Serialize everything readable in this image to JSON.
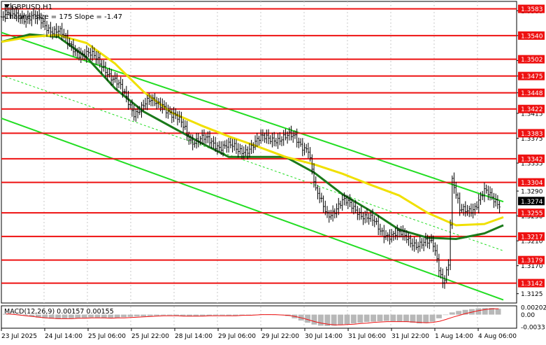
{
  "header": {
    "symbol_label": "GBPUSD,H1",
    "indicator_label": "Channel size = 175 Slope = -1.47"
  },
  "macd": {
    "label": "MACD(12,26,9) 0.00157 0.00155",
    "ticks": [
      "0.00202",
      "0.00",
      "-0.0033"
    ]
  },
  "chart_data": {
    "type": "candlestick",
    "symbol": "GBPUSD",
    "timeframe": "H1",
    "price_axis_ticks": [
      "1.3580",
      "1.3540",
      "1.3500",
      "1.3475",
      "1.3448",
      "1.3415",
      "1.3375",
      "1.3335",
      "1.3290",
      "1.3250",
      "1.3210",
      "1.3170",
      "1.3125"
    ],
    "ylim": [
      1.311,
      1.3595
    ],
    "x_tick_labels": [
      "23 Jul 2025",
      "24 Jul 14:00",
      "25 Jul 06:00",
      "25 Jul 22:00",
      "28 Jul 14:00",
      "29 Jul 06:00",
      "29 Jul 22:00",
      "30 Jul 14:00",
      "31 Jul 06:00",
      "31 Jul 22:00",
      "1 Aug 14:00",
      "4 Aug 06:00"
    ],
    "current_price": "1.3274",
    "horizontal_levels": [
      {
        "label": "1.3583",
        "value": 1.3583
      },
      {
        "label": "1.3540",
        "value": 1.354
      },
      {
        "label": "1.3502",
        "value": 1.3502
      },
      {
        "label": "1.3475",
        "value": 1.3475
      },
      {
        "label": "1.3448",
        "value": 1.3448
      },
      {
        "label": "1.3422",
        "value": 1.3422
      },
      {
        "label": "1.3383",
        "value": 1.3383
      },
      {
        "label": "1.3342",
        "value": 1.3342
      },
      {
        "label": "1.3304",
        "value": 1.3304
      },
      {
        "label": "1.3255",
        "value": 1.3255
      },
      {
        "label": "1.3217",
        "value": 1.3217
      },
      {
        "label": "1.3179",
        "value": 1.3179
      },
      {
        "label": "1.3142",
        "value": 1.3142
      }
    ],
    "price_path": [
      [
        0,
        1.357
      ],
      [
        10,
        1.3575
      ],
      [
        20,
        1.3562
      ],
      [
        30,
        1.3548
      ],
      [
        35,
        1.3525
      ],
      [
        45,
        1.351
      ],
      [
        55,
        1.349
      ],
      [
        63,
        1.3452
      ],
      [
        70,
        1.342
      ],
      [
        78,
        1.343
      ],
      [
        85,
        1.3435
      ],
      [
        90,
        1.341
      ],
      [
        97,
        1.3392
      ],
      [
        100,
        1.3375
      ],
      [
        110,
        1.3368
      ],
      [
        118,
        1.3365
      ],
      [
        125,
        1.3352
      ],
      [
        132,
        1.3365
      ],
      [
        138,
        1.3372
      ],
      [
        144,
        1.3378
      ],
      [
        150,
        1.3374
      ],
      [
        155,
        1.3375
      ],
      [
        162,
        1.336
      ],
      [
        166,
        1.3285
      ],
      [
        172,
        1.3255
      ],
      [
        180,
        1.327
      ],
      [
        188,
        1.3262
      ],
      [
        195,
        1.3242
      ],
      [
        200,
        1.3225
      ],
      [
        208,
        1.3222
      ],
      [
        215,
        1.321
      ],
      [
        222,
        1.3208
      ],
      [
        228,
        1.32
      ],
      [
        233,
        1.3148
      ],
      [
        236,
        1.3175
      ],
      [
        238,
        1.3305
      ],
      [
        242,
        1.3255
      ],
      [
        246,
        1.3262
      ],
      [
        250,
        1.3268
      ],
      [
        255,
        1.3285
      ],
      [
        259,
        1.3278
      ],
      [
        263,
        1.3274
      ]
    ],
    "series": [
      {
        "name": "",
        "color": "#1a7a1a",
        "values": [
          [
            0,
            1.353
          ],
          [
            15,
            1.3542
          ],
          [
            30,
            1.3538
          ],
          [
            45,
            1.3505
          ],
          [
            60,
            1.3455
          ],
          [
            75,
            1.3418
          ],
          [
            90,
            1.3393
          ],
          [
            105,
            1.3368
          ],
          [
            120,
            1.3345
          ],
          [
            135,
            1.3345
          ],
          [
            150,
            1.3345
          ],
          [
            165,
            1.332
          ],
          [
            180,
            1.3285
          ],
          [
            195,
            1.3258
          ],
          [
            210,
            1.3228
          ],
          [
            225,
            1.3215
          ],
          [
            240,
            1.3213
          ],
          [
            255,
            1.3222
          ],
          [
            265,
            1.3235
          ]
        ]
      },
      {
        "name": "",
        "color": "#f0e000",
        "values": [
          [
            0,
            1.353
          ],
          [
            15,
            1.3538
          ],
          [
            30,
            1.3541
          ],
          [
            45,
            1.3528
          ],
          [
            60,
            1.3495
          ],
          [
            75,
            1.345
          ],
          [
            90,
            1.3416
          ],
          [
            105,
            1.3396
          ],
          [
            120,
            1.3378
          ],
          [
            135,
            1.3362
          ],
          [
            150,
            1.3345
          ],
          [
            165,
            1.3333
          ],
          [
            180,
            1.3318
          ],
          [
            195,
            1.33
          ],
          [
            210,
            1.3283
          ],
          [
            225,
            1.3255
          ],
          [
            240,
            1.3235
          ],
          [
            255,
            1.3237
          ],
          [
            265,
            1.3248
          ]
        ]
      }
    ],
    "channel_lines": [
      {
        "from": [
          0,
          1.3545
        ],
        "to": [
          265,
          1.3273
        ]
      },
      {
        "from": [
          0,
          1.3407
        ],
        "to": [
          265,
          1.3115
        ]
      }
    ],
    "macd_histogram": [
      0.0002,
      0.0002,
      0.0001,
      -0.0002,
      -0.0005,
      -0.0008,
      -0.001,
      -0.0011,
      -0.0012,
      -0.0011,
      -0.001,
      -0.001,
      -0.0009,
      -0.0008,
      -0.0009,
      -0.001,
      -0.001,
      -0.0009,
      -0.0007,
      -0.0006,
      -0.0005,
      -0.0005,
      -0.0004,
      -0.0003,
      -0.0002,
      -0.0002,
      -0.0003,
      -0.0004,
      -0.0005,
      -0.0005,
      -0.0004,
      -0.0003,
      -0.0002,
      -0.0002,
      -0.0003,
      -0.0003,
      -0.0002,
      -0.0001,
      0.0,
      0.0001,
      0.0001,
      0.0,
      -0.0001,
      -0.0004,
      -0.001,
      -0.0016,
      -0.0022,
      -0.0027,
      -0.003,
      -0.0031,
      -0.003,
      -0.0028,
      -0.0026,
      -0.0024,
      -0.0022,
      -0.002,
      -0.0019,
      -0.0018,
      -0.0017,
      -0.0018,
      -0.0019,
      -0.002,
      -0.0022,
      -0.0024,
      -0.0023,
      -0.0019,
      -0.001,
      0.0,
      0.0006,
      0.001,
      0.0013,
      0.0015,
      0.0017,
      0.0018,
      0.0018,
      0.0016
    ],
    "macd_signal": [
      0.0002,
      0.0001,
      -0.0001,
      -0.0003,
      -0.0005,
      -0.0007,
      -0.0009,
      -0.001,
      -0.0011,
      -0.0011,
      -0.0011,
      -0.001,
      -0.001,
      -0.0009,
      -0.0009,
      -0.0009,
      -0.001,
      -0.0009,
      -0.0009,
      -0.0008,
      -0.0007,
      -0.0006,
      -0.0005,
      -0.0004,
      -0.0003,
      -0.0003,
      -0.0003,
      -0.0004,
      -0.0004,
      -0.0004,
      -0.0004,
      -0.0003,
      -0.0003,
      -0.0003,
      -0.0003,
      -0.0003,
      -0.0002,
      -0.0002,
      -0.0001,
      0.0,
      0.0,
      0.0,
      -0.0001,
      -0.0002,
      -0.0005,
      -0.0009,
      -0.0014,
      -0.0019,
      -0.0023,
      -0.0026,
      -0.0028,
      -0.0028,
      -0.0027,
      -0.0026,
      -0.0024,
      -0.0023,
      -0.0021,
      -0.002,
      -0.0019,
      -0.0019,
      -0.0019,
      -0.0019,
      -0.002,
      -0.0021,
      -0.0022,
      -0.0021,
      -0.0018,
      -0.0013,
      -0.0007,
      -0.0002,
      0.0003,
      0.0007,
      0.0011,
      0.0014,
      0.0016,
      0.0016
    ],
    "macd_ylim": [
      -0.0035,
      0.0022
    ]
  }
}
